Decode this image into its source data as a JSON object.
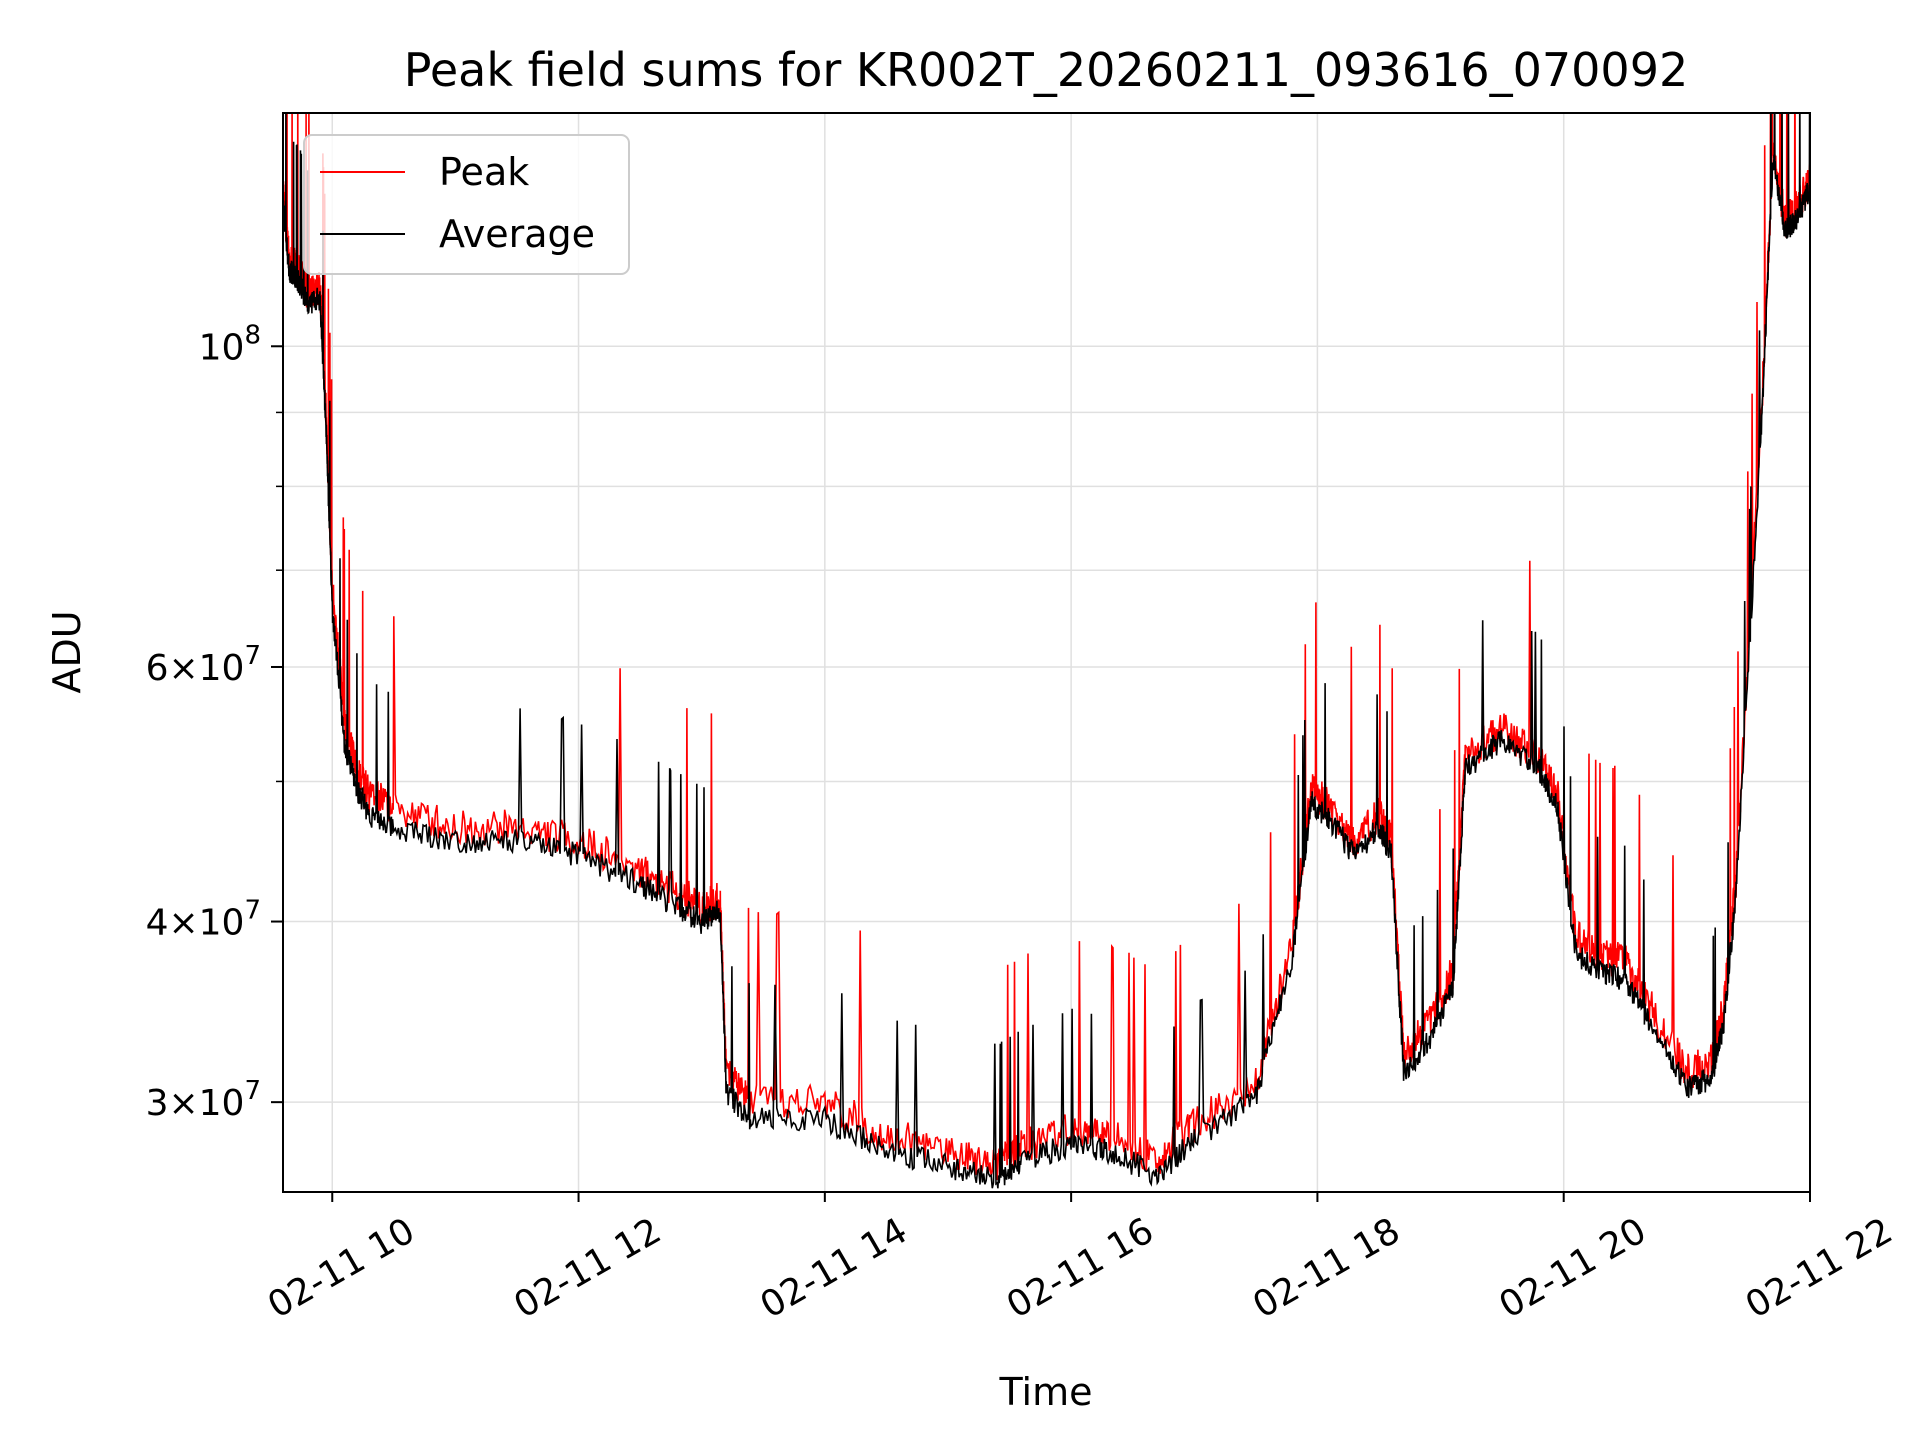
{
  "chart_data": {
    "type": "line",
    "title": "Peak field sums for KR002T_20260211_093616_070092",
    "xlabel": "Time",
    "ylabel": "ADU",
    "yscale": "log",
    "xlim": [
      9.6,
      22.0
    ],
    "ylim": [
      26000000,
      145000000
    ],
    "grid": true,
    "legend_position": "top-left",
    "x_ticks": [
      {
        "value": 10,
        "label": "02-11 10"
      },
      {
        "value": 12,
        "label": "02-11 12"
      },
      {
        "value": 14,
        "label": "02-11 14"
      },
      {
        "value": 16,
        "label": "02-11 16"
      },
      {
        "value": 18,
        "label": "02-11 18"
      },
      {
        "value": 20,
        "label": "02-11 20"
      },
      {
        "value": 22,
        "label": "02-11 22"
      }
    ],
    "y_ticks": [
      {
        "value": 30000000,
        "base": "3",
        "exp": "7"
      },
      {
        "value": 40000000,
        "base": "4",
        "exp": "7"
      },
      {
        "value": 60000000,
        "base": "6",
        "exp": "7"
      },
      {
        "value": 100000000,
        "base": "10",
        "exp": "8"
      }
    ],
    "times": "×",
    "x": [
      9.6,
      9.65,
      9.7,
      9.75,
      9.8,
      9.9,
      9.95,
      10.0,
      10.1,
      10.2,
      10.3,
      10.5,
      11.0,
      11.5,
      12.0,
      12.5,
      12.8,
      13.0,
      13.15,
      13.2,
      13.4,
      14.0,
      14.5,
      15.0,
      15.4,
      15.6,
      16.0,
      16.3,
      16.7,
      17.0,
      17.5,
      17.8,
      17.95,
      18.1,
      18.3,
      18.5,
      18.6,
      18.7,
      18.9,
      19.1,
      19.2,
      19.5,
      19.8,
      19.95,
      20.1,
      20.3,
      20.5,
      20.7,
      21.0,
      21.2,
      21.3,
      21.4,
      21.6,
      21.7,
      21.8,
      21.9,
      22.0
    ],
    "series": [
      {
        "name": "Peak",
        "color": "#ff0000",
        "values": [
          128000000,
          115000000,
          114000000,
          112000000,
          109000000,
          110000000,
          90000000,
          68000000,
          55000000,
          51000000,
          49000000,
          48000000,
          46500000,
          46500000,
          45500000,
          43500000,
          42000000,
          41000000,
          41500000,
          31500000,
          30000000,
          30000000,
          28500000,
          27800000,
          27300000,
          28000000,
          28800000,
          28500000,
          27400000,
          29000000,
          31000000,
          39000000,
          49500000,
          48000000,
          45500000,
          47500000,
          45500000,
          32500000,
          34000000,
          37000000,
          52000000,
          54500000,
          52000000,
          49000000,
          39000000,
          38000000,
          37500000,
          35000000,
          31500000,
          32000000,
          35000000,
          43000000,
          88000000,
          137000000,
          122000000,
          125000000,
          131000000
        ]
      },
      {
        "name": "Average",
        "color": "#000000",
        "values": [
          126000000,
          113000000,
          112000000,
          110000000,
          107000000,
          108000000,
          88000000,
          66000000,
          53000000,
          49500000,
          47500000,
          46500000,
          45500000,
          45500000,
          44500000,
          42500000,
          41000000,
          40000000,
          40800000,
          30500000,
          29200000,
          29200000,
          27800000,
          27100000,
          26600000,
          27300000,
          28100000,
          27800000,
          26700000,
          28300000,
          30200000,
          38000000,
          48500000,
          47000000,
          44500000,
          46500000,
          44500000,
          31500000,
          33000000,
          36000000,
          51000000,
          53500000,
          51000000,
          48000000,
          38000000,
          37000000,
          36500000,
          34000000,
          30700000,
          31200000,
          34000000,
          42000000,
          86000000,
          135000000,
          120000000,
          123000000,
          129000000
        ]
      }
    ]
  }
}
